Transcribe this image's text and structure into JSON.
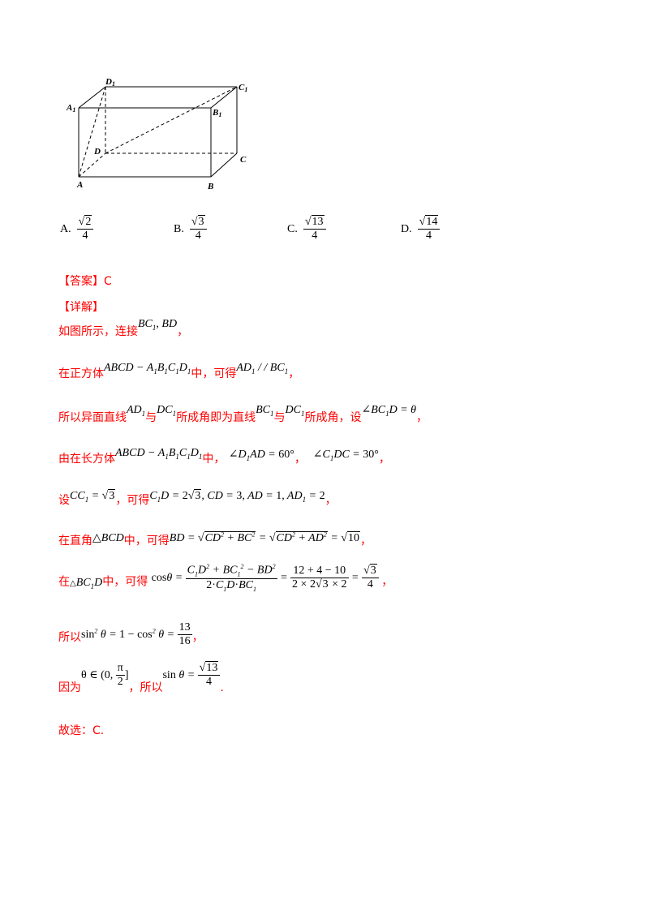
{
  "figure": {
    "labels": {
      "D1": "D",
      "D1_sub": "1",
      "C1": "C",
      "C1_sub": "1",
      "A1": "A",
      "A1_sub": "1",
      "B1": "B",
      "B1_sub": "1",
      "D": "D",
      "C": "C",
      "A": "A",
      "B": "B"
    }
  },
  "options": [
    {
      "letter": "A.",
      "num": "2",
      "den": "4"
    },
    {
      "letter": "B.",
      "num": "3",
      "den": "4"
    },
    {
      "letter": "C.",
      "num": "13",
      "den": "4"
    },
    {
      "letter": "D.",
      "num": "14",
      "den": "4"
    }
  ],
  "answer": {
    "label": "【答案】",
    "value": "C"
  },
  "detail": {
    "label": "【详解】"
  },
  "lines": {
    "l1": {
      "t1": "如图所示，连接",
      "t2": "，"
    },
    "l2": {
      "t1": "在正方体",
      "t2": "中，可得",
      "t3": "，"
    },
    "l3": {
      "t1": "所以异面直线",
      "t2": "与",
      "t3": "所成角即为直线",
      "t4": "与",
      "t5": "所成角，设",
      "t6": "，"
    },
    "l4": {
      "t1": "由在长方体",
      "t2": "中，",
      "t3": "，",
      "t4": "，"
    },
    "l5": {
      "t1": "设",
      "t2": "，可得",
      "t3": "，"
    },
    "l6": {
      "t1": "在直角",
      "t2": "中，可得",
      "t3": "，"
    },
    "l7": {
      "t1": "在",
      "t2": "中，可得",
      "t3": "，"
    },
    "l8": {
      "t1": "所以",
      "t2": "，"
    },
    "l9": {
      "t1": "因为",
      "t2": "，所以",
      "t3": "."
    },
    "l10": {
      "t1": "故选：C."
    }
  }
}
